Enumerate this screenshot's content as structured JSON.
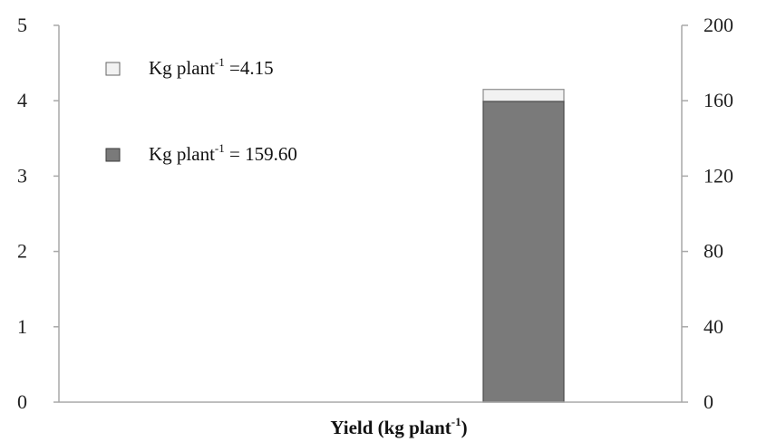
{
  "chart_data": {
    "type": "bar",
    "stacked": true,
    "xlabel": "Yield (kg plant",
    "xlabel_sup": "-1",
    "xlabel_suffix": ")",
    "categories": [
      ""
    ],
    "left_axis": {
      "ylim": [
        0,
        5
      ],
      "ticks": [
        "0",
        "1",
        "2",
        "3",
        "4",
        "5"
      ]
    },
    "right_axis": {
      "ylim": [
        0,
        200
      ],
      "ticks": [
        "0",
        "40",
        "80",
        "120",
        "160",
        "200"
      ]
    },
    "grid": false,
    "legend_position": "top-left",
    "bar_values_left_axis": [
      4.15
    ],
    "bar_values_right_axis": [
      159.6
    ],
    "legend": [
      {
        "text": "Kg plant",
        "sup": "-1",
        "suffix": " =4.15",
        "color": "#f2f2f2",
        "axis": "left",
        "value": 4.15
      },
      {
        "text": "Kg plant",
        "sup": "-1",
        "suffix": " = 159.60",
        "color": "#7a7a7a",
        "axis": "right",
        "value": 159.6
      }
    ]
  }
}
